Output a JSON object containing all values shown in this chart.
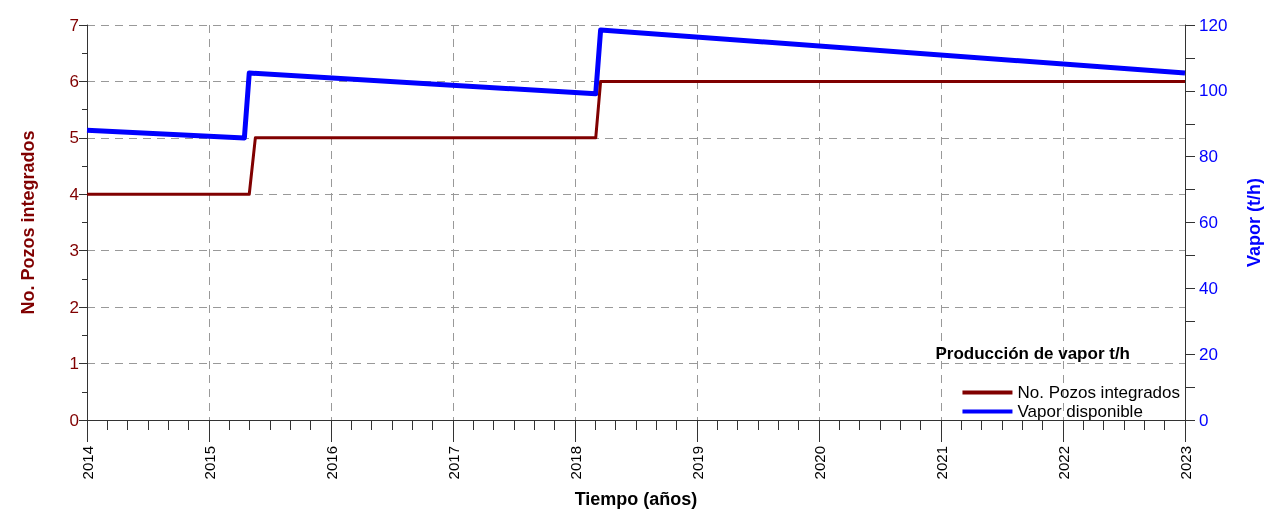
{
  "chart_data": {
    "type": "line",
    "xlabel": "Tiempo (años)",
    "ylabel": "No. Pozos integrados",
    "y2label": "Vapor (t/h)",
    "legend_title": "Producción de vapor t/h",
    "series": [
      {
        "name": "No. Pozos integrados",
        "color": "#800000",
        "x": [
          2014,
          2015.33,
          2015.38,
          2018.17,
          2018.21,
          2023
        ],
        "values": [
          4,
          4,
          5,
          5,
          6,
          6
        ]
      },
      {
        "name": "Vapor disponible",
        "color": "#0000ff",
        "axis": "y2",
        "x": [
          2014,
          2015.29,
          2015.33,
          2018.17,
          2018.21,
          2023
        ],
        "values": [
          88,
          85.7,
          105.4,
          99.1,
          118.5,
          105.4
        ]
      }
    ],
    "xlim": [
      2014,
      2023
    ],
    "xticks": [
      2014,
      2015,
      2016,
      2017,
      2018,
      2019,
      2020,
      2021,
      2022,
      2023
    ],
    "ylim": [
      0,
      7
    ],
    "yticks": [
      0,
      1,
      2,
      3,
      4,
      5,
      6,
      7
    ],
    "y2lim": [
      0,
      120
    ],
    "y2ticks": [
      0,
      20,
      40,
      60,
      80,
      100,
      120
    ],
    "grid": true,
    "legend": "bottom right",
    "line_style": "solid",
    "marker": "none"
  }
}
